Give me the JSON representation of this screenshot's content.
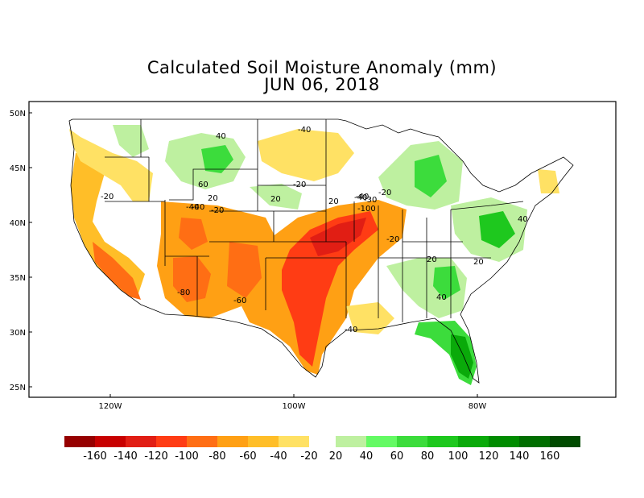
{
  "title_line1": "Calculated Soil Moisture Anomaly (mm)",
  "title_line2": "JUN 06, 2018",
  "map": {
    "lat_ticks": [
      "50N",
      "45N",
      "40N",
      "35N",
      "30N",
      "25N"
    ],
    "lon_ticks": [
      "120W",
      "100W",
      "80W"
    ],
    "contour_labels": [
      "40",
      "60",
      "-20",
      "-40",
      "-20",
      "20",
      "20",
      "-40",
      "-20",
      "-80",
      "-60",
      "-40",
      "20",
      "-40",
      "-30",
      "-100",
      "-20",
      "-20",
      "-40",
      "40",
      "20",
      "20",
      "40",
      "-40"
    ]
  },
  "colorbar": {
    "negative_labels": [
      "-160",
      "-140",
      "-120",
      "-100",
      "-80",
      "-60",
      "-40",
      "-20"
    ],
    "positive_labels": [
      "20",
      "40",
      "60",
      "80",
      "100",
      "120",
      "140",
      "160"
    ],
    "negative_colors": [
      "#960000",
      "#c80000",
      "#e11e14",
      "#ff3c14",
      "#ff6e14",
      "#ffa014",
      "#ffbe28",
      "#ffe164"
    ],
    "positive_colors": [
      "#bef0a0",
      "#64fa64",
      "#3cdc3c",
      "#1ec81e",
      "#0aaa0a",
      "#008c00",
      "#006e00",
      "#004b00"
    ]
  }
}
